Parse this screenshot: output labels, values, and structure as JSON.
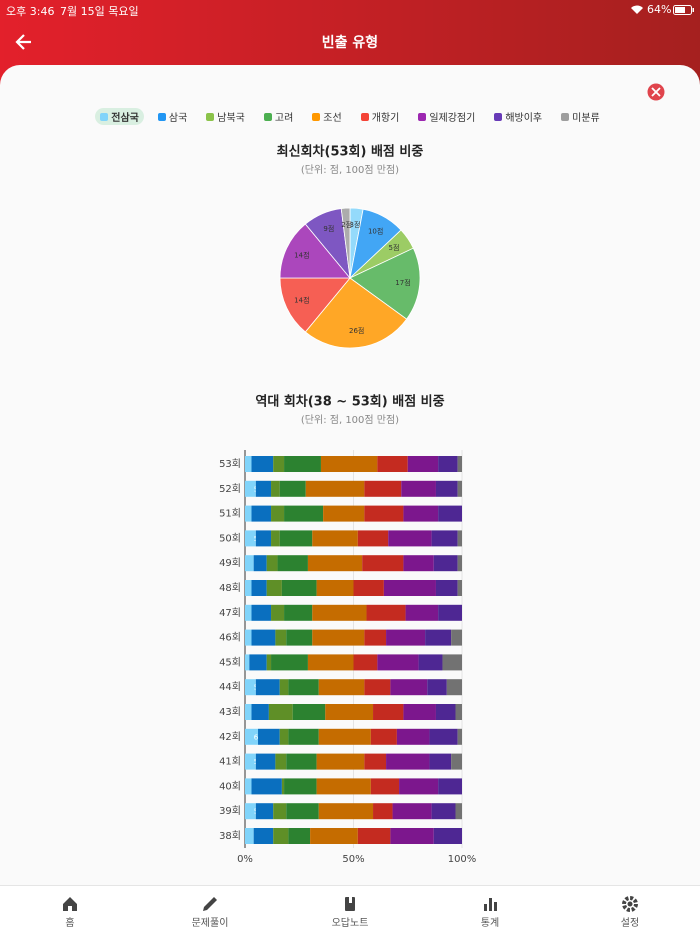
{
  "status_bar": {
    "time": "오후 3:46",
    "date": "7월 15일 목요일",
    "battery": "64%"
  },
  "header": {
    "title": "빈출 유형"
  },
  "chart_data": [
    {
      "type": "pie",
      "title": "최신회차(53회) 배점 비중",
      "subtitle": "(단위: 점, 100점 만점)",
      "values": [
        3,
        10,
        5,
        17,
        26,
        14,
        14,
        9,
        2
      ],
      "value_labels": [
        "3점",
        "10점",
        "5점",
        "17점",
        "26점",
        "14점",
        "14점",
        "9점",
        "2점"
      ]
    },
    {
      "type": "stacked-bar",
      "orientation": "horizontal",
      "title": "역대 회차(38 ~ 53회) 배점 비중",
      "subtitle": "(단위: 점, 100점 만점)",
      "categories": [
        "53회",
        "52회",
        "51회",
        "50회",
        "49회",
        "48회",
        "47회",
        "46회",
        "45회",
        "44회",
        "43회",
        "42회",
        "41회",
        "40회",
        "39회",
        "38회"
      ],
      "xlim": [
        0,
        100
      ],
      "xticks": [
        {
          "value": 0,
          "label": "0%"
        },
        {
          "value": 50,
          "label": "50%"
        },
        {
          "value": 100,
          "label": "100%"
        }
      ],
      "series": [
        {
          "name": "전삼국",
          "color": "#81d4fa",
          "values": [
            3,
            5,
            3,
            5,
            4,
            3,
            3,
            3,
            2,
            5,
            3,
            6,
            5,
            3,
            5,
            4
          ]
        },
        {
          "name": "삼국",
          "color": "#2196f3",
          "values": [
            10,
            7,
            9,
            7,
            6,
            7,
            9,
            11,
            8,
            11,
            8,
            10,
            9,
            14,
            8,
            9
          ]
        },
        {
          "name": "남북국",
          "color": "#8bc34a",
          "values": [
            5,
            4,
            6,
            4,
            5,
            7,
            6,
            5,
            2,
            4,
            11,
            4,
            5,
            1,
            6,
            7
          ]
        },
        {
          "name": "고려",
          "color": "#4caf50",
          "values": [
            17,
            12,
            18,
            15,
            14,
            16,
            13,
            12,
            17,
            14,
            15,
            14,
            14,
            15,
            15,
            10
          ]
        },
        {
          "name": "조선",
          "color": "#ff9800",
          "values": [
            26,
            27,
            19,
            21,
            25,
            17,
            25,
            24,
            21,
            21,
            22,
            24,
            22,
            25,
            25,
            22
          ]
        },
        {
          "name": "개항기",
          "color": "#f44336",
          "values": [
            14,
            17,
            18,
            14,
            19,
            14,
            18,
            10,
            11,
            12,
            14,
            12,
            10,
            13,
            9,
            15
          ]
        },
        {
          "name": "일제강점기",
          "color": "#9c27b0",
          "values": [
            14,
            16,
            16,
            20,
            14,
            24,
            15,
            18,
            19,
            17,
            15,
            15,
            20,
            18,
            18,
            20
          ]
        },
        {
          "name": "해방이후",
          "color": "#673ab7",
          "values": [
            9,
            10,
            11,
            12,
            11,
            10,
            11,
            12,
            11,
            9,
            9,
            13,
            10,
            11,
            11,
            13
          ]
        },
        {
          "name": "미분류",
          "color": "#9e9e9e",
          "values": [
            2,
            2,
            0,
            2,
            2,
            2,
            0,
            5,
            9,
            7,
            3,
            2,
            5,
            0,
            3,
            0
          ]
        }
      ]
    }
  ],
  "tab_bar": [
    "홈",
    "문제풀이",
    "오답노트",
    "통계",
    "설정"
  ]
}
